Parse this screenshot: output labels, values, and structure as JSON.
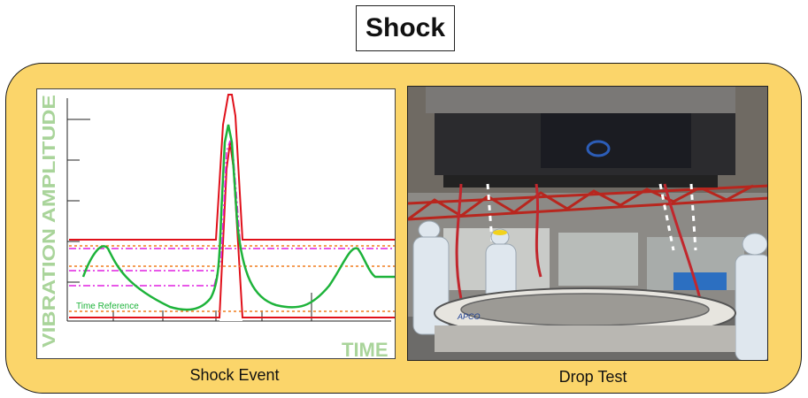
{
  "title": "Shock",
  "left_panel": {
    "caption": "Shock Event",
    "y_axis_label": "VIBRATION AMPLITUDE",
    "x_axis_label": "TIME",
    "annotation": "Time Reference"
  },
  "right_panel": {
    "caption": "Drop Test",
    "photo_label": "APCO"
  },
  "colors": {
    "panel_fill": "#fbd56a",
    "axis_label": "#a9d49a",
    "limit_red": "#e0101a",
    "response_green": "#1db33a",
    "magenta": "#e020e0",
    "orange_dash": "#f07d1e"
  }
}
